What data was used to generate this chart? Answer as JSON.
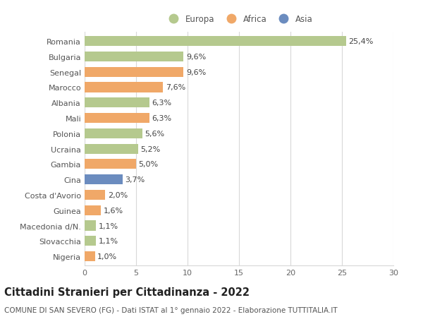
{
  "categories": [
    "Romania",
    "Bulgaria",
    "Senegal",
    "Marocco",
    "Albania",
    "Mali",
    "Polonia",
    "Ucraina",
    "Gambia",
    "Cina",
    "Costa d'Avorio",
    "Guinea",
    "Macedonia d/N.",
    "Slovacchia",
    "Nigeria"
  ],
  "values": [
    25.4,
    9.6,
    9.6,
    7.6,
    6.3,
    6.3,
    5.6,
    5.2,
    5.0,
    3.7,
    2.0,
    1.6,
    1.1,
    1.1,
    1.0
  ],
  "labels": [
    "25,4%",
    "9,6%",
    "9,6%",
    "7,6%",
    "6,3%",
    "6,3%",
    "5,6%",
    "5,2%",
    "5,0%",
    "3,7%",
    "2,0%",
    "1,6%",
    "1,1%",
    "1,1%",
    "1,0%"
  ],
  "continents": [
    "Europa",
    "Europa",
    "Africa",
    "Africa",
    "Europa",
    "Africa",
    "Europa",
    "Europa",
    "Africa",
    "Asia",
    "Africa",
    "Africa",
    "Europa",
    "Europa",
    "Africa"
  ],
  "colors": {
    "Europa": "#b5c98e",
    "Africa": "#f0a868",
    "Asia": "#6b8cbf"
  },
  "legend_labels": [
    "Europa",
    "Africa",
    "Asia"
  ],
  "title": "Cittadini Stranieri per Cittadinanza - 2022",
  "subtitle": "COMUNE DI SAN SEVERO (FG) - Dati ISTAT al 1° gennaio 2022 - Elaborazione TUTTITALIA.IT",
  "xlim": [
    0,
    30
  ],
  "xticks": [
    0,
    5,
    10,
    15,
    20,
    25,
    30
  ],
  "background_color": "#ffffff",
  "grid_color": "#d8d8d8",
  "bar_height": 0.65,
  "label_fontsize": 8.0,
  "tick_fontsize": 8.0,
  "title_fontsize": 10.5,
  "subtitle_fontsize": 7.5
}
